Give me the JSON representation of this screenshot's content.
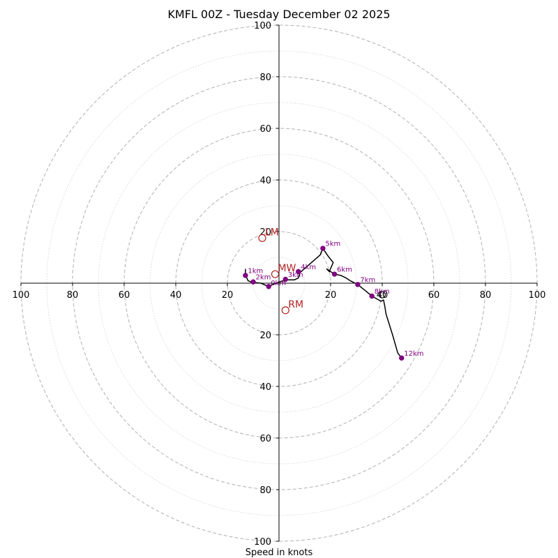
{
  "chart_data": {
    "type": "hodograph",
    "title": "KMFL 00Z - Tuesday December 02 2025",
    "xlabel": "Speed in knots",
    "units": "knots",
    "range": [
      -100,
      100
    ],
    "rings_major": [
      20,
      40,
      60,
      80,
      100
    ],
    "rings_minor": [
      10,
      30,
      50,
      70,
      90
    ],
    "x_tick_values": [
      -100,
      -80,
      -60,
      -40,
      -20,
      20,
      40,
      60,
      80,
      100
    ],
    "x_tick_labels": [
      "100",
      "80",
      "60",
      "40",
      "20",
      "20",
      "40",
      "60",
      "80",
      "100"
    ],
    "y_tick_values": [
      100,
      80,
      60,
      40,
      20,
      -20,
      -40,
      -60,
      -80,
      -100
    ],
    "y_tick_labels": [
      "100",
      "80",
      "60",
      "40",
      "20",
      "20",
      "40",
      "60",
      "80",
      "100"
    ],
    "colors": {
      "trace": "#000000",
      "height_points": "#800080",
      "motion": "#b22222",
      "grid": "#b0b0b0"
    },
    "trace": [
      [
        -13,
        5.5
      ],
      [
        -13,
        3.5
      ],
      [
        -12.5,
        2
      ],
      [
        -12,
        1
      ],
      [
        -11,
        0.5
      ],
      [
        -10,
        0.3
      ],
      [
        -7,
        0
      ],
      [
        -4,
        -1.3
      ],
      [
        -2.5,
        -0.5
      ],
      [
        -1,
        0
      ],
      [
        0,
        0.5
      ],
      [
        3,
        1.3
      ],
      [
        6,
        1.3
      ],
      [
        7.5,
        2
      ],
      [
        8,
        4
      ],
      [
        12,
        7.5
      ],
      [
        16,
        11
      ],
      [
        17,
        13.5
      ],
      [
        19,
        10.5
      ],
      [
        21,
        8
      ],
      [
        19.5,
        4.5
      ],
      [
        18.5,
        5.5
      ],
      [
        21.5,
        3.5
      ],
      [
        24,
        3
      ],
      [
        26,
        2
      ],
      [
        27.5,
        1
      ],
      [
        30.5,
        -0.5
      ],
      [
        33,
        -2.5
      ],
      [
        36,
        -5
      ],
      [
        39.5,
        -7
      ],
      [
        40.5,
        -6.5
      ],
      [
        41,
        -9
      ],
      [
        41.5,
        -12
      ],
      [
        44,
        -20
      ],
      [
        46,
        -27
      ],
      [
        47.5,
        -29
      ]
    ],
    "height_points": [
      {
        "label": "1km",
        "u": -13,
        "v": 3
      },
      {
        "label": "2km",
        "u": -10,
        "v": 0.5
      },
      {
        "label": "3km",
        "u": 2.5,
        "v": 1.5
      },
      {
        "label": "4km",
        "u": 7.5,
        "v": 4.5
      },
      {
        "label": "5km",
        "u": 17,
        "v": 13.5
      },
      {
        "label": "6km",
        "u": 21.5,
        "v": 3.5
      },
      {
        "label": "7km",
        "u": 30.5,
        "v": -0.5
      },
      {
        "label": "8km",
        "u": 36,
        "v": -5
      },
      {
        "label": "12km",
        "u": 47.5,
        "v": -29
      }
    ],
    "surface_point": {
      "u": -4,
      "v": -1.3
    },
    "surface_label": "0km",
    "end_marker": {
      "u": 40,
      "v": -4.5
    },
    "storm_motion": [
      {
        "label": "LM",
        "u": -6.5,
        "v": 17.5
      },
      {
        "label": "MW",
        "u": -1.5,
        "v": 3.5
      },
      {
        "label": "RM",
        "u": 2.5,
        "v": -10.5
      }
    ]
  }
}
